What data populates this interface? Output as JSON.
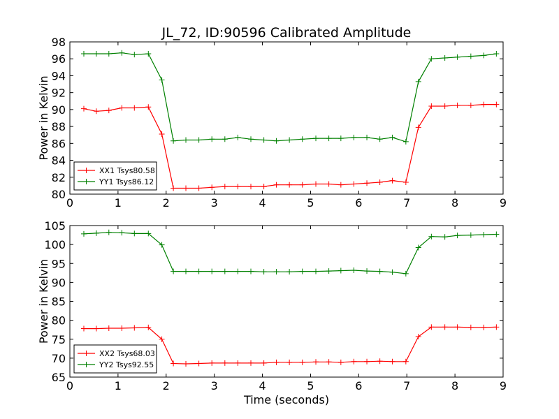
{
  "figure": {
    "title": "JL_72, ID:90596 Calibrated Amplitude",
    "xlabel": "Time (seconds)"
  },
  "chart_data": [
    {
      "type": "line",
      "ylabel": "Power in Kelvin",
      "xlim": [
        0,
        9
      ],
      "ylim": [
        80,
        98
      ],
      "xticks": [
        0,
        1,
        2,
        3,
        4,
        5,
        6,
        7,
        8,
        9
      ],
      "yticks": [
        80,
        82,
        84,
        86,
        88,
        90,
        92,
        94,
        96,
        98
      ],
      "x": [
        0.29,
        0.55,
        0.81,
        1.08,
        1.34,
        1.63,
        1.91,
        2.15,
        2.41,
        2.68,
        2.95,
        3.22,
        3.49,
        3.76,
        4.03,
        4.29,
        4.56,
        4.83,
        5.11,
        5.38,
        5.63,
        5.9,
        6.17,
        6.44,
        6.7,
        6.98,
        7.24,
        7.51,
        7.79,
        8.05,
        8.33,
        8.6,
        8.86
      ],
      "series": [
        {
          "name": "XX1 Tsys80.58",
          "color": "#ff0000",
          "values": [
            90.1,
            89.8,
            89.9,
            90.2,
            90.2,
            90.3,
            87.1,
            80.7,
            80.7,
            80.7,
            80.8,
            80.9,
            80.9,
            80.9,
            80.9,
            81.1,
            81.1,
            81.1,
            81.2,
            81.2,
            81.1,
            81.2,
            81.3,
            81.4,
            81.6,
            81.4,
            87.9,
            90.4,
            90.4,
            90.5,
            90.5,
            90.6,
            90.6
          ]
        },
        {
          "name": "YY1 Tsys86.12",
          "color": "#008000",
          "values": [
            96.6,
            96.6,
            96.6,
            96.7,
            96.5,
            96.6,
            93.5,
            86.3,
            86.4,
            86.4,
            86.5,
            86.5,
            86.7,
            86.5,
            86.4,
            86.3,
            86.4,
            86.5,
            86.6,
            86.6,
            86.6,
            86.7,
            86.7,
            86.5,
            86.7,
            86.2,
            93.3,
            96.0,
            96.1,
            96.2,
            96.3,
            96.4,
            96.6
          ]
        }
      ],
      "legend": "lower-left"
    },
    {
      "type": "line",
      "ylabel": "Power in Kelvin",
      "xlim": [
        0,
        9
      ],
      "ylim": [
        65,
        105
      ],
      "xticks": [
        0,
        1,
        2,
        3,
        4,
        5,
        6,
        7,
        8,
        9
      ],
      "yticks": [
        65,
        70,
        75,
        80,
        85,
        90,
        95,
        100,
        105
      ],
      "x": [
        0.29,
        0.55,
        0.81,
        1.08,
        1.34,
        1.63,
        1.91,
        2.15,
        2.41,
        2.68,
        2.95,
        3.22,
        3.49,
        3.76,
        4.03,
        4.29,
        4.56,
        4.83,
        5.11,
        5.38,
        5.63,
        5.9,
        6.17,
        6.44,
        6.7,
        6.98,
        7.24,
        7.51,
        7.79,
        8.05,
        8.33,
        8.6,
        8.86
      ],
      "series": [
        {
          "name": "XX2 Tsys68.03",
          "color": "#ff0000",
          "values": [
            77.8,
            77.8,
            77.9,
            77.9,
            78.0,
            78.1,
            75.0,
            68.6,
            68.5,
            68.6,
            68.7,
            68.7,
            68.7,
            68.7,
            68.7,
            68.9,
            68.9,
            68.9,
            69.0,
            69.0,
            68.9,
            69.1,
            69.1,
            69.2,
            69.1,
            69.1,
            75.7,
            78.2,
            78.2,
            78.2,
            78.1,
            78.1,
            78.2
          ]
        },
        {
          "name": "YY2 Tsys92.55",
          "color": "#008000",
          "values": [
            102.8,
            103.0,
            103.2,
            103.1,
            102.9,
            102.9,
            99.9,
            92.9,
            92.9,
            92.9,
            92.9,
            92.9,
            92.9,
            92.9,
            92.8,
            92.8,
            92.8,
            92.9,
            92.9,
            93.0,
            93.1,
            93.2,
            93.0,
            92.9,
            92.7,
            92.3,
            99.2,
            102.1,
            102.0,
            102.4,
            102.5,
            102.6,
            102.7
          ]
        }
      ],
      "legend": "lower-left"
    }
  ]
}
